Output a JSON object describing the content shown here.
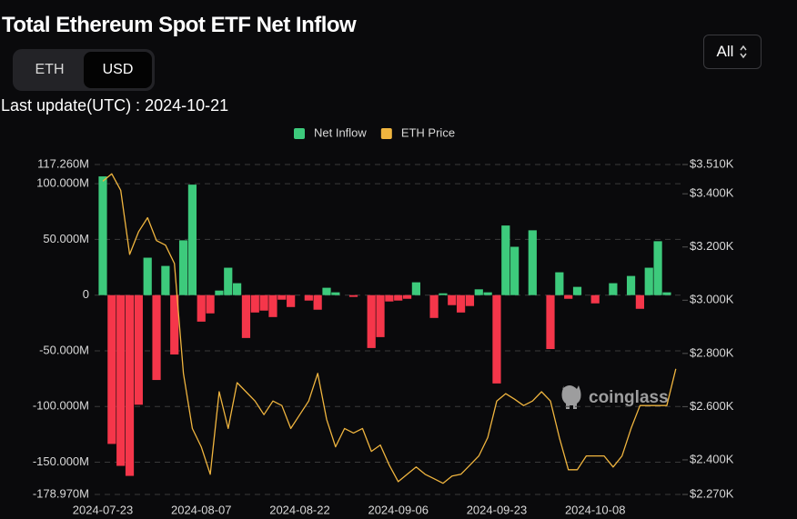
{
  "header": {
    "title": "Total Ethereum Spot ETF Net Inflow",
    "toggle": [
      "ETH",
      "USD"
    ],
    "range_selector": "All",
    "last_update": "Last update(UTC) : 2024-10-21"
  },
  "watermark": "coinglass",
  "chart_data": {
    "type": "bar",
    "categories": [
      "2024-07-23",
      null,
      null,
      null,
      null,
      null,
      null,
      null,
      null,
      null,
      null,
      "2024-08-07",
      null,
      null,
      null,
      null,
      null,
      null,
      null,
      null,
      null,
      null,
      "2024-08-22",
      null,
      null,
      null,
      null,
      null,
      null,
      null,
      null,
      null,
      null,
      "2024-09-06",
      null,
      null,
      null,
      null,
      null,
      null,
      null,
      null,
      null,
      null,
      "2024-09-23",
      null,
      null,
      null,
      null,
      null,
      null,
      null,
      null,
      null,
      null,
      "2024-10-08",
      null,
      null,
      null,
      null,
      null,
      null,
      null,
      null,
      null
    ],
    "series": [
      {
        "name": "Net Inflow",
        "type": "bar",
        "color": "#3dca7c",
        "negative_color": "#f5364a",
        "values": [
          106.6,
          -133.6,
          -153.3,
          -162.3,
          -98.4,
          33.6,
          -76.2,
          26.2,
          -53.3,
          49.2,
          99.2,
          -23.8,
          -16.4,
          4.1,
          24.6,
          10.7,
          -38.5,
          -15.6,
          -13.9,
          -19.7,
          -4.1,
          -10.7,
          0,
          -4.9,
          -13.1,
          6.6,
          2.5,
          0,
          -1.6,
          0,
          -47.5,
          -37.7,
          -5.7,
          -4.9,
          -3.3,
          11.5,
          0,
          -20.5,
          1.6,
          -9.0,
          -15.6,
          -9.8,
          5.2,
          2.5,
          -79.3,
          62.5,
          43.4,
          0,
          58.2,
          0,
          -48.4,
          20.5,
          -3.3,
          7.4,
          0,
          -7.4,
          0,
          10.7,
          0,
          17.2,
          -12.3,
          24.6,
          48.4,
          2.5,
          0
        ]
      },
      {
        "name": "ETH Price",
        "type": "line",
        "axis": "y2",
        "color": "#f0b53f",
        "values": [
          3447,
          3475,
          3413,
          3172,
          3258,
          3310,
          3224,
          3207,
          3138,
          2725,
          2518,
          2449,
          2346,
          2656,
          2518,
          2690,
          2656,
          2621,
          2570,
          2621,
          2604,
          2518,
          2570,
          2621,
          2725,
          2552,
          2449,
          2518,
          2501,
          2518,
          2432,
          2456,
          2380,
          2318,
          2346,
          2373,
          2346,
          2329,
          2312,
          2339,
          2346,
          2380,
          2415,
          2484,
          2621,
          2649,
          2628,
          2604,
          2621,
          2656,
          2621,
          2484,
          2363,
          2363,
          2415,
          2415,
          2415,
          2373,
          2415,
          2518,
          2604,
          2604,
          2604,
          2604,
          2742
        ]
      }
    ],
    "ylim": [
      -178.97,
      117.26
    ],
    "yticks": [
      {
        "value": 117.26,
        "label": "117.260M"
      },
      {
        "value": 100,
        "label": "100.000M"
      },
      {
        "value": 50,
        "label": "50.000M"
      },
      0,
      {
        "value": -50,
        "label": "-50.000M"
      },
      {
        "value": -100,
        "label": "-100.000M"
      },
      {
        "value": -150,
        "label": "-150.000M"
      },
      {
        "value": -178.97,
        "label": "-178.970M"
      }
    ],
    "y2lim": [
      2270,
      3510
    ],
    "y2ticks": [
      {
        "value": 3510,
        "label": "$3.510K"
      },
      {
        "value": 3400,
        "label": "$3.400K"
      },
      {
        "value": 3200,
        "label": "$3.200K"
      },
      {
        "value": 3000,
        "label": "$3.000K"
      },
      {
        "value": 2800,
        "label": "$2.800K"
      },
      {
        "value": 2600,
        "label": "$2.600K"
      },
      {
        "value": 2400,
        "label": "$2.400K"
      },
      {
        "value": 2270,
        "label": "$2.270K"
      }
    ],
    "grid": true,
    "legend": "top"
  }
}
